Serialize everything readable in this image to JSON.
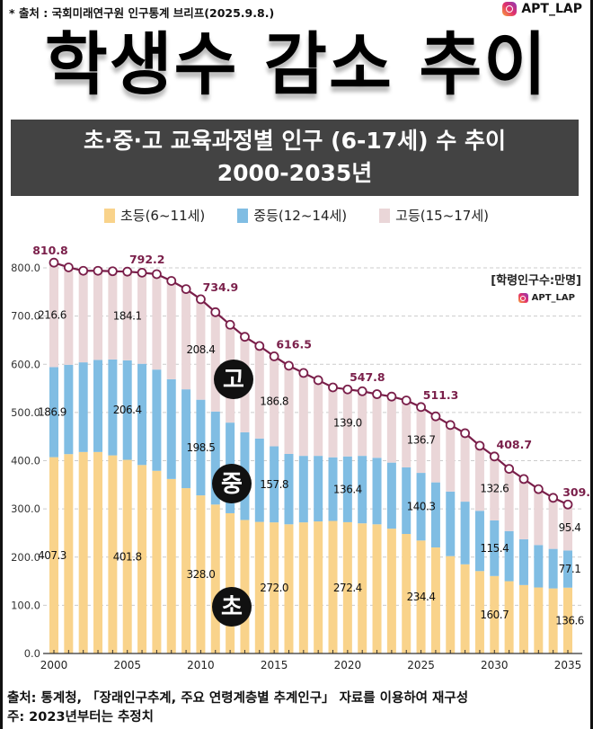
{
  "header": {
    "source": "* 출처 : 국회미래연구원 인구통계 브리프(2025.9.8.)",
    "brand": "APT_LAP",
    "title": "학생수 감소 추이",
    "subtitle_line1": "초·중·고 교육과정별 인구 (6-17세) 수 추이",
    "subtitle_line2": "2000-2035년"
  },
  "chart_data": {
    "type": "bar",
    "stacked": true,
    "title": "초·중·고 교육과정별 인구 (6-17세) 수 추이 2000-2035년",
    "unit_label": "[학령인구수:만명]",
    "ylim": [
      0,
      800
    ],
    "yticks": [
      "0.0",
      "100.0",
      "200.0",
      "300.0",
      "400.0",
      "500.0",
      "600.0",
      "700.0",
      "800.0"
    ],
    "xtick_labels": [
      "2000",
      "2005",
      "2010",
      "2015",
      "2020",
      "2025",
      "2030",
      "2035"
    ],
    "grid": "horizontal dashed",
    "legend_placement": "top",
    "categories": [
      2000,
      2001,
      2002,
      2003,
      2004,
      2005,
      2006,
      2007,
      2008,
      2009,
      2010,
      2011,
      2012,
      2013,
      2014,
      2015,
      2016,
      2017,
      2018,
      2019,
      2020,
      2021,
      2022,
      2023,
      2024,
      2025,
      2026,
      2027,
      2028,
      2029,
      2030,
      2031,
      2032,
      2033,
      2034,
      2035
    ],
    "series": [
      {
        "name": "초등(6~11세)",
        "color": "#f9d38b",
        "values": [
          407.3,
          413.6,
          418,
          418,
          411,
          401.8,
          391,
          379,
          362,
          343,
          328.0,
          309,
          291,
          277,
          273,
          272.0,
          268,
          272,
          274,
          275,
          272.4,
          270,
          268,
          259,
          248,
          234.4,
          220,
          202,
          185,
          171,
          160.7,
          150,
          142,
          137,
          135,
          136.6
        ]
      },
      {
        "name": "중등(12~14세)",
        "color": "#80bde3",
        "values": [
          186.9,
          185.4,
          186,
          191,
          199,
          206.4,
          210,
          210,
          207,
          205,
          198.5,
          193,
          188,
          182,
          173,
          157.8,
          146,
          138,
          136,
          132,
          136.4,
          140,
          138,
          137,
          138,
          140.3,
          135,
          134,
          130,
          125,
          115.4,
          104,
          95,
          88,
          82,
          77.1
        ]
      },
      {
        "name": "고등(15~17세)",
        "color": "#ead6d8",
        "values": [
          216.6,
          202,
          190,
          185,
          183,
          184.1,
          189,
          198,
          204,
          208,
          208.4,
          206,
          203,
          198,
          192,
          186.8,
          183,
          172,
          157,
          145,
          139.0,
          134,
          132,
          137,
          139,
          136.7,
          137,
          138,
          142,
          135,
          132.6,
          129,
          125,
          116,
          106,
          95.4
        ]
      }
    ],
    "total": {
      "color": "#7a1f4a",
      "values": [
        810.8,
        801,
        794,
        794,
        793,
        792.2,
        790,
        787,
        773,
        756,
        734.9,
        708,
        682,
        657,
        638,
        616.5,
        597,
        582,
        567,
        552,
        547.8,
        544,
        538,
        533,
        525,
        511.3,
        492,
        474,
        457,
        431,
        408.7,
        383,
        362,
        341,
        323,
        309.1
      ]
    },
    "labeled_years": [
      2000,
      2005,
      2010,
      2015,
      2020,
      2025,
      2030,
      2035
    ],
    "badges": [
      "고",
      "중",
      "초"
    ]
  },
  "footer": {
    "line1": "출처: 통계청, 「장래인구추계, 주요 연령계층별 추계인구」 자료를 이용하여 재구성",
    "line2": "주: 2023년부터는 추정치"
  }
}
